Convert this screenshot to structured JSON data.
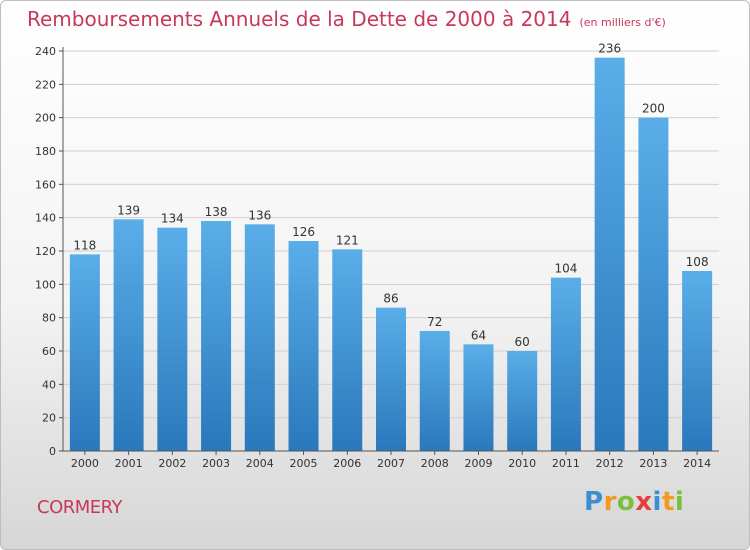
{
  "header": {
    "title": "Remboursements Annuels de la Dette de 2000 à 2014",
    "subtitle": "(en milliers d'€)"
  },
  "footer": {
    "town": "CORMERY",
    "logo_letters": [
      "P",
      "r",
      "o",
      "x",
      "i",
      "t",
      "i"
    ]
  },
  "colors": {
    "title": "#c8385a",
    "bar_top": "#5aaee8",
    "bar_bottom": "#2a78bc",
    "grid": "#d0d0d0"
  },
  "chart_data": {
    "type": "bar",
    "title": "Remboursements Annuels de la Dette de 2000 à 2014",
    "subtitle": "(en milliers d'€)",
    "xlabel": "",
    "ylabel": "",
    "categories": [
      "2000",
      "2001",
      "2002",
      "2003",
      "2004",
      "2005",
      "2006",
      "2007",
      "2008",
      "2009",
      "2010",
      "2011",
      "2012",
      "2013",
      "2014"
    ],
    "values": [
      118,
      139,
      134,
      138,
      136,
      126,
      121,
      86,
      72,
      64,
      60,
      104,
      236,
      200,
      108
    ],
    "ylim": [
      0,
      240
    ],
    "yticks": [
      0,
      20,
      40,
      60,
      80,
      100,
      120,
      140,
      160,
      180,
      200,
      220,
      240
    ],
    "grid": true
  }
}
